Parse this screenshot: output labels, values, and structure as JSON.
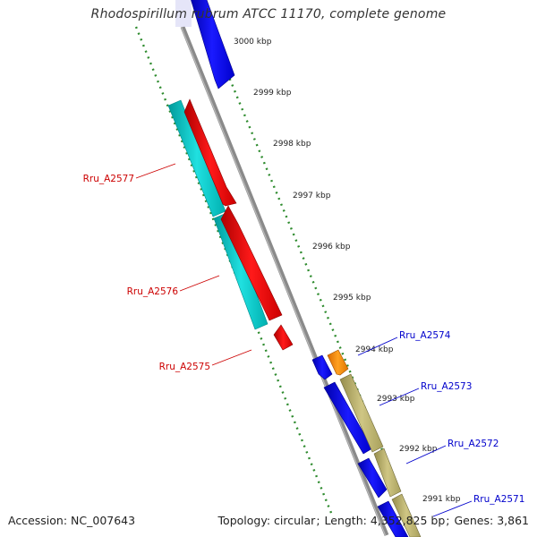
{
  "title": "Rhodospirillum rubrum ATCC 11170, complete genome",
  "footer": {
    "accession_label": "Accession:",
    "accession": "NC_007643",
    "topology_label": "Topology:",
    "topology": "circular",
    "length_label": "Length:",
    "length": "4,352,825 bp",
    "genes_label": "Genes:",
    "genes": "3,861"
  },
  "ticks": [
    "3000 kbp",
    "2999 kbp",
    "2998 kbp",
    "2997 kbp",
    "2996 kbp",
    "2995 kbp",
    "2994 kbp",
    "2993 kbp",
    "2992 kbp",
    "2991 kbp"
  ],
  "gene_labels": [
    {
      "name": "Rru_A2577",
      "color": "#cc0000"
    },
    {
      "name": "Rru_A2576",
      "color": "#cc0000"
    },
    {
      "name": "Rru_A2575",
      "color": "#cc0000"
    },
    {
      "name": "Rru_A2574",
      "color": "#0000cc"
    },
    {
      "name": "Rru_A2573",
      "color": "#0000cc"
    },
    {
      "name": "Rru_A2572",
      "color": "#0000cc"
    },
    {
      "name": "Rru_A2571",
      "color": "#0000cc"
    }
  ],
  "colors": {
    "backbone": "#8a8a8a",
    "forward_cds": "#0000ff",
    "reverse_cds": "#ff0000",
    "cyan_track": "#00c8c8",
    "olive_track": "#b9b06a",
    "orange_feature": "#ff8c00",
    "dots": "#2e8b2e"
  }
}
